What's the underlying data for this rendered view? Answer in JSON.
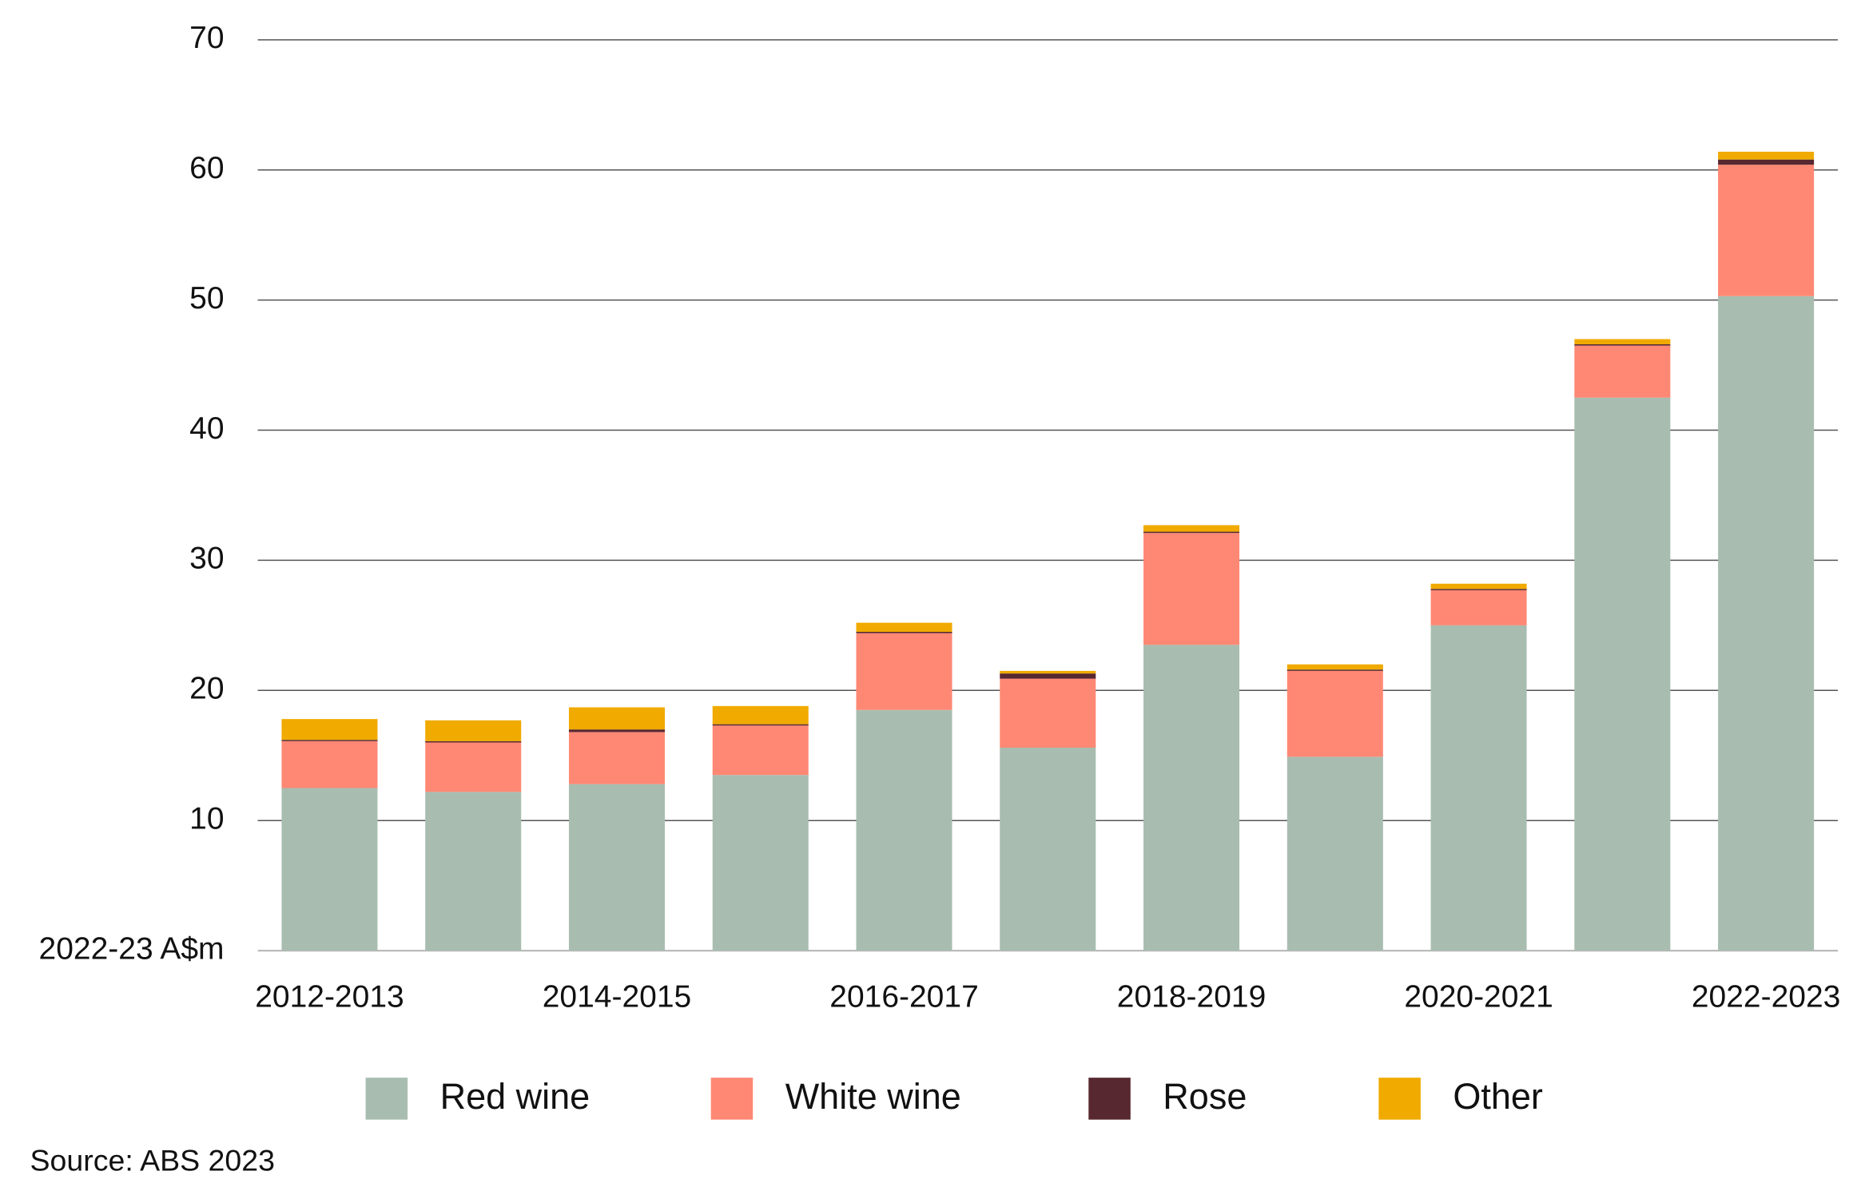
{
  "chart_data": {
    "type": "stacked-bar",
    "y_label": "2022-23 A$m",
    "source": "Source: ABS 2023",
    "categories": [
      "2012-2013",
      null,
      "2014-2015",
      null,
      "2016-2017",
      null,
      "2018-2019",
      null,
      "2020-2021",
      null,
      "2022-2023"
    ],
    "series": [
      {
        "name": "Red wine",
        "color": "#a8bdb0",
        "values": [
          12.5,
          12.2,
          12.8,
          13.5,
          18.5,
          15.6,
          23.5,
          14.9,
          25.0,
          42.5,
          50.3
        ]
      },
      {
        "name": "White wine",
        "color": "#ff8874",
        "values": [
          3.6,
          3.8,
          4.0,
          3.8,
          5.9,
          5.3,
          8.6,
          6.6,
          2.7,
          4.0,
          10.1
        ]
      },
      {
        "name": "Rose",
        "color": "#582830",
        "values": [
          0.1,
          0.1,
          0.2,
          0.1,
          0.1,
          0.4,
          0.1,
          0.1,
          0.1,
          0.1,
          0.4
        ]
      },
      {
        "name": "Other",
        "color": "#f0aa00",
        "values": [
          1.6,
          1.6,
          1.7,
          1.4,
          0.7,
          0.2,
          0.5,
          0.4,
          0.4,
          0.4,
          0.6
        ]
      }
    ],
    "ylim": [
      0,
      70
    ],
    "yticks": [
      10,
      20,
      30,
      40,
      50,
      60,
      70
    ],
    "grid": true,
    "legend": "bottom"
  }
}
